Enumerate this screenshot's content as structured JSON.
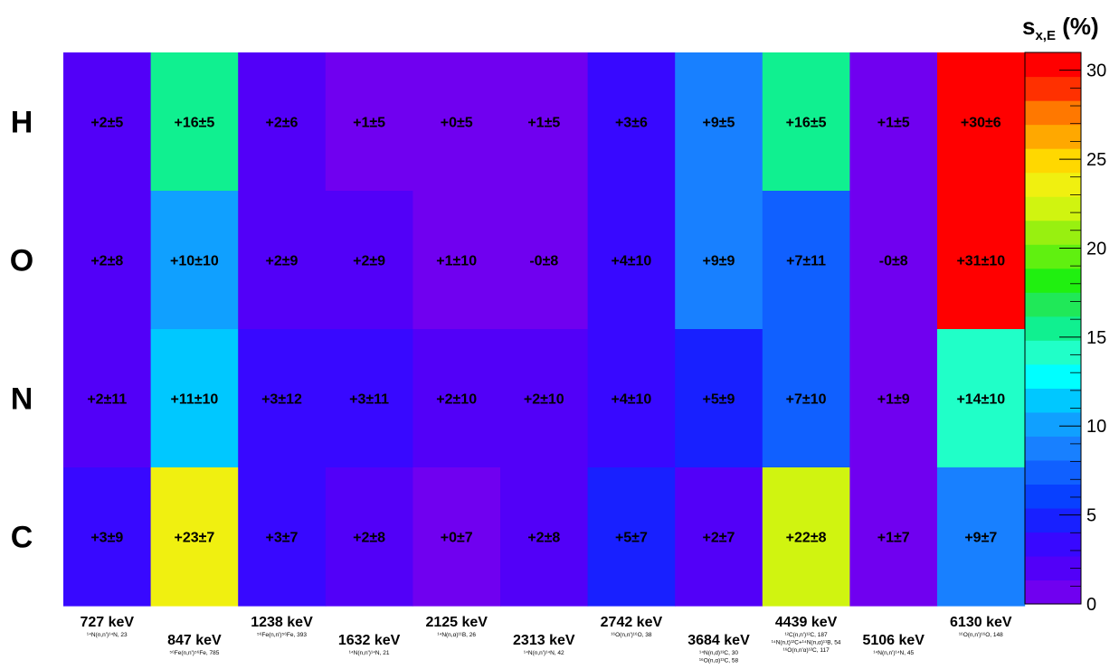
{
  "chart_data": {
    "type": "heatmap",
    "colorbar_title": {
      "main": "s",
      "sub": "x,E",
      "suffix": " (%)"
    },
    "z_range": [
      0,
      31
    ],
    "colorbar_ticks": [
      0,
      5,
      10,
      15,
      20,
      25,
      30
    ],
    "rows": [
      "H",
      "O",
      "N",
      "C"
    ],
    "columns": [
      {
        "energy": "727 keV",
        "reactions": [
          "¹⁴N(n,n')¹⁴N, 23"
        ]
      },
      {
        "energy": "847 keV",
        "reactions": [
          "⁵⁶Fe(n,n')⁵⁶Fe, 785"
        ]
      },
      {
        "energy": "1238 keV",
        "reactions": [
          "⁵⁶Fe(n,n')⁵⁶Fe, 393"
        ]
      },
      {
        "energy": "1632 keV",
        "reactions": [
          "¹⁴N(n,n')¹⁴N, 21"
        ]
      },
      {
        "energy": "2125 keV",
        "reactions": [
          "¹⁴N(n,α)¹¹B, 26"
        ]
      },
      {
        "energy": "2313 keV",
        "reactions": [
          "¹⁴N(n,n')¹⁴N, 42"
        ]
      },
      {
        "energy": "2742 keV",
        "reactions": [
          "¹⁶O(n,n')¹⁶O, 38"
        ]
      },
      {
        "energy": "3684 keV",
        "reactions": [
          "¹⁴N(n,d)¹³C, 30",
          "¹⁶O(n,α)¹³C, 58"
        ]
      },
      {
        "energy": "4439 keV",
        "reactions": [
          "¹²C(n,n')¹²C, 187",
          "¹⁴N(n,t)¹²C+¹⁴N(n,α)¹¹B, 54",
          "¹⁶O(n,n'α)¹²C, 117"
        ]
      },
      {
        "energy": "5106 keV",
        "reactions": [
          "¹⁴N(n,n')¹⁴N, 45"
        ]
      },
      {
        "energy": "6130 keV",
        "reactions": [
          "¹⁶O(n,n')¹⁶O, 148"
        ]
      }
    ],
    "values": [
      [
        2,
        16,
        2,
        1,
        0,
        1,
        3,
        9,
        16,
        1,
        30
      ],
      [
        2,
        10,
        2,
        2,
        1,
        0,
        4,
        9,
        7,
        0,
        31
      ],
      [
        2,
        11,
        3,
        3,
        2,
        2,
        4,
        5,
        7,
        1,
        14
      ],
      [
        3,
        23,
        3,
        2,
        0,
        2,
        5,
        2,
        22,
        1,
        9
      ]
    ],
    "labels": [
      [
        "+2±5",
        "+16±5",
        "+2±6",
        "+1±5",
        "+0±5",
        "+1±5",
        "+3±6",
        "+9±5",
        "+16±5",
        "+1±5",
        "+30±6"
      ],
      [
        "+2±8",
        "+10±10",
        "+2±9",
        "+2±9",
        "+1±10",
        "-0±8",
        "+4±10",
        "+9±9",
        "+7±11",
        "-0±8",
        "+31±10"
      ],
      [
        "+2±11",
        "+11±10",
        "+3±12",
        "+3±11",
        "+2±10",
        "+2±10",
        "+4±10",
        "+5±9",
        "+7±10",
        "+1±9",
        "+14±10"
      ],
      [
        "+3±9",
        "+23±7",
        "+3±7",
        "+2±8",
        "+0±7",
        "+2±8",
        "+5±7",
        "+2±7",
        "+22±8",
        "+1±7",
        "+9±7"
      ]
    ],
    "palette": [
      "#7000f0",
      "#5200f8",
      "#3808ff",
      "#1820ff",
      "#0840ff",
      "#1060ff",
      "#1880ff",
      "#10a0ff",
      "#00c8ff",
      "#00ffff",
      "#20ffc8",
      "#10f090",
      "#20e858",
      "#20f010",
      "#60f010",
      "#98f010",
      "#d0f410",
      "#f0f010",
      "#ffd800",
      "#ffa800",
      "#ff7800",
      "#ff3000",
      "#ff0000"
    ]
  }
}
